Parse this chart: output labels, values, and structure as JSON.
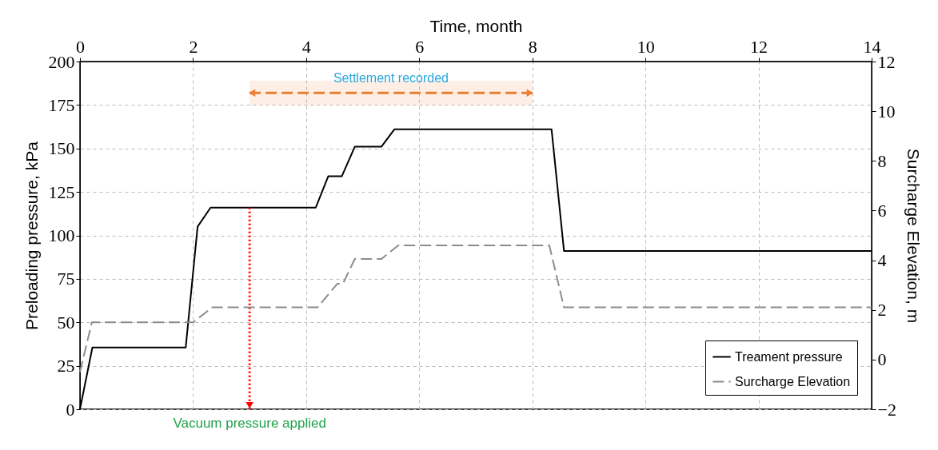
{
  "chart_data": {
    "type": "line",
    "xlabel": "Time, month",
    "ylabel": "Preloading pressure, kPa",
    "y2label": "Surcharge Elevation, m",
    "xlim": [
      0,
      14
    ],
    "xticks": [
      {
        "value": 0,
        "label": "0"
      },
      {
        "value": 2,
        "label": "2"
      },
      {
        "value": 4,
        "label": "4"
      },
      {
        "value": 6,
        "label": "6"
      },
      {
        "value": 8,
        "label": "8"
      },
      {
        "value": 10,
        "label": "10"
      },
      {
        "value": 12,
        "label": "12"
      },
      {
        "value": 14,
        "label": "14"
      }
    ],
    "ylim": [
      0,
      200
    ],
    "yticks": [
      0,
      25,
      50,
      75,
      100,
      125,
      150,
      175,
      200
    ],
    "y2lim": [
      -2,
      12
    ],
    "y2ticks": [
      -2,
      0,
      2,
      4,
      6,
      8,
      10,
      12
    ],
    "grid": true,
    "legend": "bottom right",
    "series": [
      {
        "name": "Treament pressure",
        "color": "#000000",
        "line_style": "solid",
        "x": [
          0,
          0.22,
          1.87,
          2.08,
          2.31,
          4.17,
          4.39,
          4.63,
          4.86,
          5.33,
          5.56,
          8.34,
          8.56,
          14
        ],
        "values": [
          0,
          35.5,
          35.5,
          105,
          116,
          116,
          134,
          134,
          151,
          151,
          161,
          161,
          91,
          91
        ]
      },
      {
        "name": "Surcharge Elevation",
        "color": "#8c8c8c",
        "line_style": "dashed",
        "axis": "y2",
        "x": [
          0,
          0.21,
          2.0,
          2.34,
          4.2,
          4.55,
          4.65,
          4.86,
          5.33,
          5.63,
          8.3,
          8.56,
          14
        ],
        "values": [
          -0.5,
          1.5,
          1.5,
          2.1,
          2.1,
          3.05,
          3.05,
          4.05,
          4.05,
          4.6,
          4.6,
          2.1,
          2.1
        ]
      }
    ],
    "ref_lines": [
      {
        "axis": "x",
        "value": 3,
        "label": "Vacuum pressure applied",
        "color": "#ff0000",
        "line_style": "dotted"
      }
    ],
    "bands": [
      {
        "axis": "x",
        "from": 3,
        "to": 8,
        "label": "Settlement recorded",
        "color": "#ed7d31"
      }
    ]
  }
}
